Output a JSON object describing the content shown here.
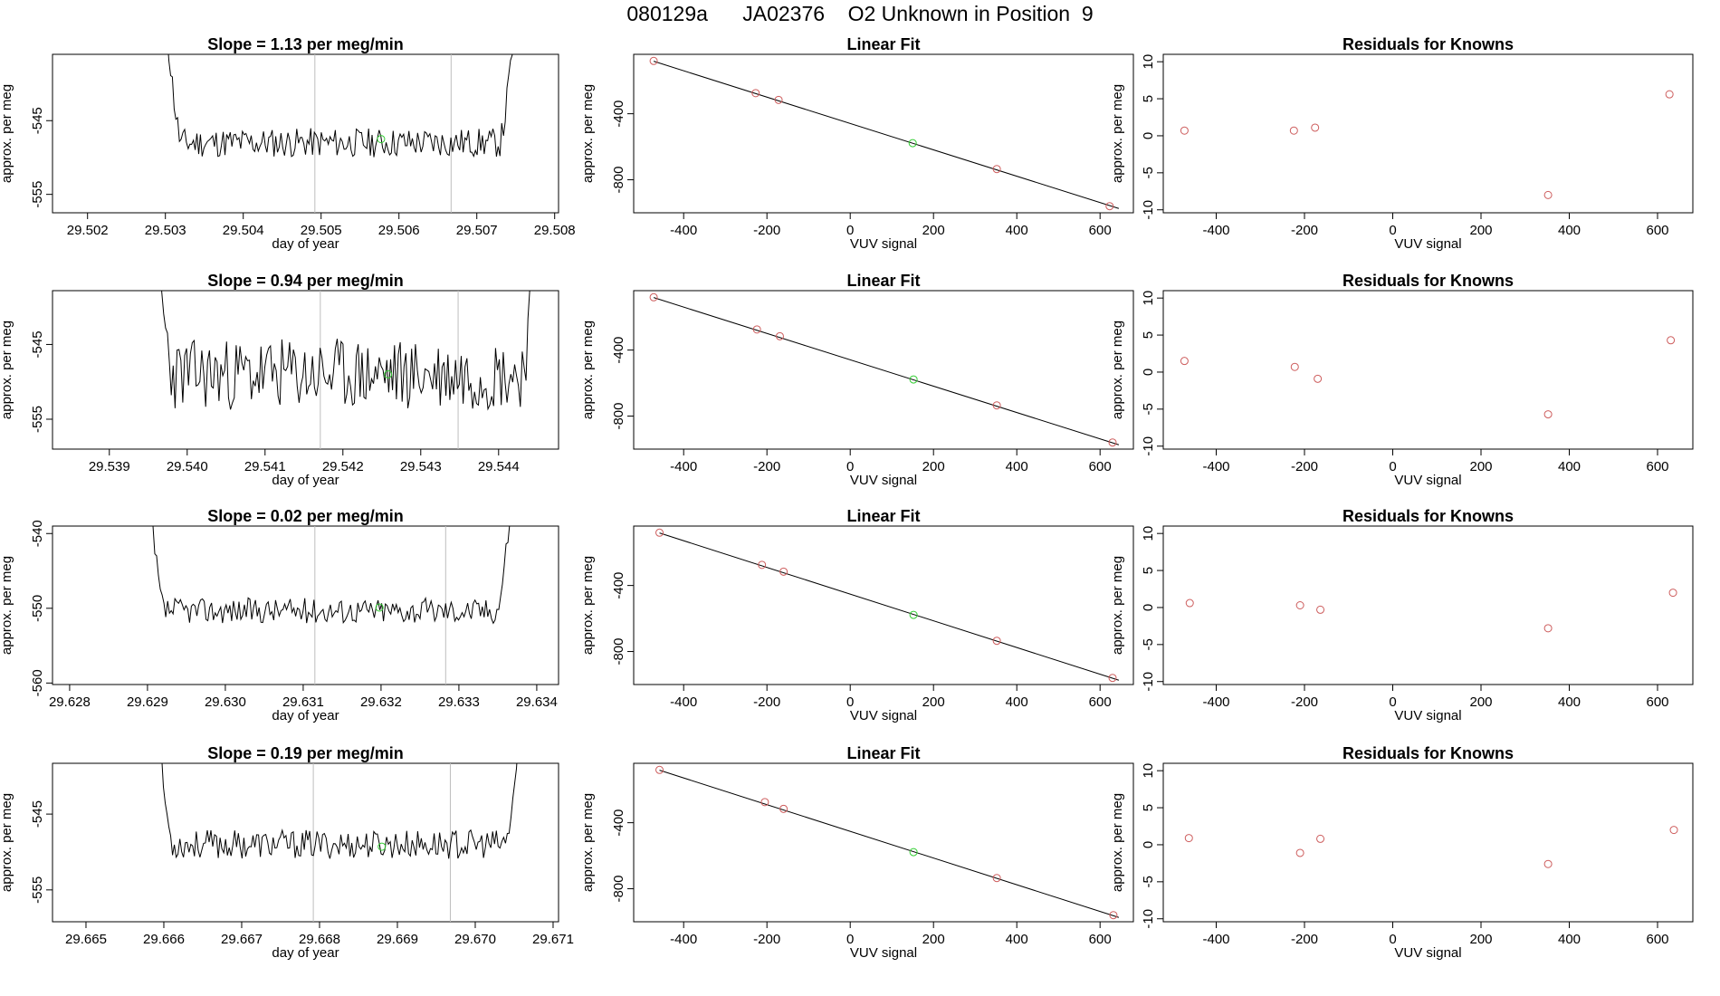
{
  "title": "080129a      JA02376    O2 Unknown in Position  9",
  "colors": {
    "trace": "#000000",
    "known_point": "#cd5c5c",
    "unknown_point": "#32cd32",
    "vline": "#bebebe",
    "fit_line": "#000000"
  },
  "chart_data": [
    {
      "type": "line",
      "title": "Slope =  1.13  per meg/min",
      "xlabel": "day of year",
      "ylabel": "approx. per meg",
      "xlim": [
        29.50155,
        29.50805
      ],
      "ylim": [
        -557.5,
        -536.0
      ],
      "xticks": [
        29.502,
        29.503,
        29.504,
        29.505,
        29.506,
        29.507,
        29.508
      ],
      "xtick_labels": [
        "29.502",
        "29.503",
        "29.504",
        "29.505",
        "29.506",
        "29.507",
        "29.508"
      ],
      "yticks": [
        -545,
        -555
      ],
      "ytick_labels": [
        "-545",
        "-555"
      ],
      "x_start": 29.503,
      "x_end": 29.5075,
      "baseline": -548.0,
      "noise": 2.0,
      "seed": 11,
      "vlines": [
        29.50492,
        29.50667
      ],
      "unknown_point": {
        "x": 29.50577,
        "y": -547.5
      }
    },
    {
      "type": "line",
      "title": "Slope =  0.94  per meg/min",
      "xlabel": "day of year",
      "ylabel": "approx. per meg",
      "xlim": [
        29.53827,
        29.54477
      ],
      "ylim": [
        -559.0,
        -537.8
      ],
      "xticks": [
        29.539,
        29.54,
        29.541,
        29.542,
        29.543,
        29.544
      ],
      "xtick_labels": [
        "29.539",
        "29.540",
        "29.541",
        "29.542",
        "29.543",
        "29.544"
      ],
      "yticks": [
        -545,
        -555
      ],
      "ytick_labels": [
        "-545",
        "-555"
      ],
      "x_start": 29.5396,
      "x_end": 29.5445,
      "baseline": -549.0,
      "noise": 4.8,
      "seed": 23,
      "vlines": [
        29.54171,
        29.54348
      ],
      "unknown_point": {
        "x": 29.54258,
        "y": -549.0
      }
    },
    {
      "type": "line",
      "title": "Slope =  0.02  per meg/min",
      "xlabel": "day of year",
      "ylabel": "approx. per meg",
      "xlim": [
        29.62778,
        29.63428
      ],
      "ylim": [
        -560.2,
        -539.0
      ],
      "xticks": [
        29.628,
        29.629,
        29.63,
        29.631,
        29.632,
        29.633,
        29.634
      ],
      "xtick_labels": [
        "29.628",
        "29.629",
        "29.630",
        "29.631",
        "29.632",
        "29.633",
        "29.634"
      ],
      "yticks": [
        -540,
        -550,
        -560
      ],
      "ytick_labels": [
        "-540",
        "-550",
        "-560"
      ],
      "x_start": 29.629,
      "x_end": 29.6337,
      "baseline": -550.3,
      "noise": 1.7,
      "seed": 37,
      "vlines": [
        29.63115,
        29.63283
      ],
      "unknown_point": {
        "x": 29.63198,
        "y": -549.9
      }
    },
    {
      "type": "line",
      "title": "Slope =  0.19  per meg/min",
      "xlabel": "day of year",
      "ylabel": "approx. per meg",
      "xlim": [
        29.66457,
        29.67107
      ],
      "ylim": [
        -559.2,
        -538.3
      ],
      "xticks": [
        29.665,
        29.666,
        29.667,
        29.668,
        29.669,
        29.67,
        29.671
      ],
      "xtick_labels": [
        "29.665",
        "29.666",
        "29.667",
        "29.668",
        "29.669",
        "29.670",
        "29.671"
      ],
      "yticks": [
        -545,
        -555
      ],
      "ytick_labels": [
        "-545",
        "-555"
      ],
      "x_start": 29.6659,
      "x_end": 29.6706,
      "baseline": -549.0,
      "noise": 1.9,
      "seed": 53,
      "vlines": [
        29.66792,
        29.66968
      ],
      "unknown_point": {
        "x": 29.6688,
        "y": -549.3
      }
    },
    {
      "type": "scatter",
      "title": "Linear Fit",
      "xlabel": "VUV signal",
      "ylabel": "approx. per meg",
      "xlim": [
        -520,
        680
      ],
      "ylim": [
        -1000,
        -40
      ],
      "xticks": [
        -400,
        -200,
        0,
        200,
        400,
        600
      ],
      "xtick_labels": [
        "-400",
        "-200",
        "0",
        "200",
        "400",
        "600"
      ],
      "yticks": [
        -400,
        -800
      ],
      "ytick_labels": [
        "-400",
        "-800"
      ],
      "known_points": [
        [
          -472,
          -80
        ],
        [
          -227,
          -275
        ],
        [
          -172,
          -316
        ],
        [
          352,
          -735
        ],
        [
          623,
          -960
        ]
      ],
      "unknown_points": [
        [
          150,
          -578
        ]
      ],
      "fit_line": [
        [
          -472,
          -82
        ],
        [
          645,
          -974
        ]
      ]
    },
    {
      "type": "scatter",
      "title": "Linear Fit",
      "xlabel": "VUV signal",
      "ylabel": "approx. per meg",
      "xlim": [
        -520,
        680
      ],
      "ylim": [
        -1000,
        -40
      ],
      "xticks": [
        -400,
        -200,
        0,
        200,
        400,
        600
      ],
      "xtick_labels": [
        "-400",
        "-200",
        "0",
        "200",
        "400",
        "600"
      ],
      "yticks": [
        -400,
        -800
      ],
      "ytick_labels": [
        "-400",
        "-800"
      ],
      "known_points": [
        [
          -472,
          -80
        ],
        [
          -224,
          -275
        ],
        [
          -169,
          -316
        ],
        [
          352,
          -735
        ],
        [
          630,
          -960
        ]
      ],
      "unknown_points": [
        [
          152,
          -578
        ]
      ],
      "fit_line": [
        [
          -472,
          -82
        ],
        [
          645,
          -974
        ]
      ]
    },
    {
      "type": "scatter",
      "title": "Linear Fit",
      "xlabel": "VUV signal",
      "ylabel": "approx. per meg",
      "xlim": [
        -520,
        680
      ],
      "ylim": [
        -1000,
        -40
      ],
      "xticks": [
        -400,
        -200,
        0,
        200,
        400,
        600
      ],
      "xtick_labels": [
        "-400",
        "-200",
        "0",
        "200",
        "400",
        "600"
      ],
      "yticks": [
        -400,
        -800
      ],
      "ytick_labels": [
        "-400",
        "-800"
      ],
      "known_points": [
        [
          -458,
          -80
        ],
        [
          -212,
          -275
        ],
        [
          -160,
          -316
        ],
        [
          352,
          -735
        ],
        [
          630,
          -960
        ]
      ],
      "unknown_points": [
        [
          152,
          -578
        ]
      ],
      "fit_line": [
        [
          -458,
          -82
        ],
        [
          645,
          -974
        ]
      ]
    },
    {
      "type": "scatter",
      "title": "Linear Fit",
      "xlabel": "VUV signal",
      "ylabel": "approx. per meg",
      "xlim": [
        -520,
        680
      ],
      "ylim": [
        -1000,
        -40
      ],
      "xticks": [
        -400,
        -200,
        0,
        200,
        400,
        600
      ],
      "xtick_labels": [
        "-400",
        "-200",
        "0",
        "200",
        "400",
        "600"
      ],
      "yticks": [
        -400,
        -800
      ],
      "ytick_labels": [
        "-400",
        "-800"
      ],
      "known_points": [
        [
          -458,
          -80
        ],
        [
          -205,
          -275
        ],
        [
          -160,
          -316
        ],
        [
          352,
          -735
        ],
        [
          632,
          -960
        ]
      ],
      "unknown_points": [
        [
          152,
          -578
        ]
      ],
      "fit_line": [
        [
          -458,
          -82
        ],
        [
          645,
          -974
        ]
      ]
    },
    {
      "type": "scatter",
      "title": "Residuals for Knowns",
      "xlabel": "VUV signal",
      "ylabel": "approx. per meg",
      "xlim": [
        -520,
        680
      ],
      "ylim": [
        -10.4,
        11.0
      ],
      "xticks": [
        -400,
        -200,
        0,
        200,
        400,
        600
      ],
      "xtick_labels": [
        "-400",
        "-200",
        "0",
        "200",
        "400",
        "600"
      ],
      "yticks": [
        10,
        5,
        0,
        -5,
        -10
      ],
      "ytick_labels": [
        "10",
        "5",
        "0",
        "-5",
        "-10"
      ],
      "known_points": [
        [
          -472,
          0.7
        ],
        [
          -224,
          0.7
        ],
        [
          -176,
          1.1
        ],
        [
          352,
          -8.0
        ],
        [
          627,
          5.6
        ]
      ]
    },
    {
      "type": "scatter",
      "title": "Residuals for Knowns",
      "xlabel": "VUV signal",
      "ylabel": "approx. per meg",
      "xlim": [
        -520,
        680
      ],
      "ylim": [
        -10.4,
        11.0
      ],
      "xticks": [
        -400,
        -200,
        0,
        200,
        400,
        600
      ],
      "xtick_labels": [
        "-400",
        "-200",
        "0",
        "200",
        "400",
        "600"
      ],
      "yticks": [
        10,
        5,
        0,
        -5,
        -10
      ],
      "ytick_labels": [
        "10",
        "5",
        "0",
        "-5",
        "-10"
      ],
      "known_points": [
        [
          -472,
          1.5
        ],
        [
          -222,
          0.7
        ],
        [
          -170,
          -0.9
        ],
        [
          352,
          -5.7
        ],
        [
          630,
          4.3
        ]
      ]
    },
    {
      "type": "scatter",
      "title": "Residuals for Knowns",
      "xlabel": "VUV signal",
      "ylabel": "approx. per meg",
      "xlim": [
        -520,
        680
      ],
      "ylim": [
        -10.4,
        11.0
      ],
      "xticks": [
        -400,
        -200,
        0,
        200,
        400,
        600
      ],
      "xtick_labels": [
        "-400",
        "-200",
        "0",
        "200",
        "400",
        "600"
      ],
      "yticks": [
        10,
        5,
        0,
        -5,
        -10
      ],
      "ytick_labels": [
        "10",
        "5",
        "0",
        "-5",
        "-10"
      ],
      "known_points": [
        [
          -460,
          0.6
        ],
        [
          -210,
          0.3
        ],
        [
          -164,
          -0.3
        ],
        [
          352,
          -2.8
        ],
        [
          635,
          2.0
        ]
      ]
    },
    {
      "type": "scatter",
      "title": "Residuals for Knowns",
      "xlabel": "VUV signal",
      "ylabel": "approx. per meg",
      "xlim": [
        -520,
        680
      ],
      "ylim": [
        -10.4,
        11.0
      ],
      "xticks": [
        -400,
        -200,
        0,
        200,
        400,
        600
      ],
      "xtick_labels": [
        "-400",
        "-200",
        "0",
        "200",
        "400",
        "600"
      ],
      "yticks": [
        10,
        5,
        0,
        -5,
        -10
      ],
      "ytick_labels": [
        "10",
        "5",
        "0",
        "-5",
        "-10"
      ],
      "known_points": [
        [
          -462,
          0.9
        ],
        [
          -210,
          -1.1
        ],
        [
          -164,
          0.8
        ],
        [
          352,
          -2.6
        ],
        [
          637,
          2.0
        ]
      ]
    }
  ]
}
